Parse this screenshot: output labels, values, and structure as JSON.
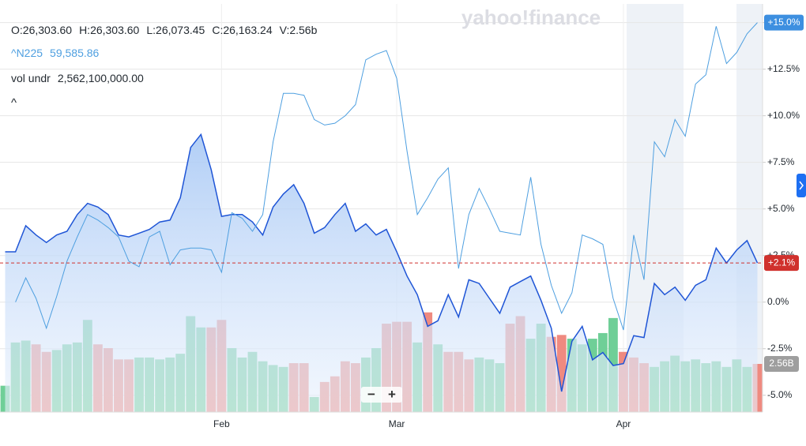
{
  "watermark": "yahoo!finance",
  "ohlcv": [
    "O:26,303.60",
    "H:26,303.60",
    "L:26,073.45",
    "C:26,163.24",
    "V:2.56b"
  ],
  "controls": {
    "collapse": "^",
    "zoom_out": "−",
    "zoom_in": "+"
  },
  "chart_data": {
    "type": "line",
    "categories": [
      null,
      null,
      null,
      null,
      null,
      null,
      null,
      null,
      null,
      null,
      null,
      null,
      null,
      null,
      null,
      null,
      null,
      null,
      null,
      null,
      null,
      "Feb",
      null,
      null,
      null,
      null,
      null,
      null,
      null,
      null,
      null,
      null,
      null,
      null,
      null,
      null,
      null,
      null,
      "Mar",
      null,
      null,
      null,
      null,
      null,
      null,
      null,
      null,
      null,
      null,
      null,
      null,
      null,
      null,
      null,
      null,
      null,
      null,
      null,
      null,
      null,
      "Apr",
      null,
      null,
      null,
      null,
      null,
      null,
      null,
      null,
      null,
      null,
      null,
      null,
      null
    ],
    "ylim": [
      -5.9,
      16.0
    ],
    "yticks": [
      {
        "value": -5,
        "label": "-5.0%"
      },
      {
        "value": -2.5,
        "label": "-2.5%"
      },
      {
        "value": 0,
        "label": "0.0%"
      },
      {
        "value": 2.5,
        "label": "+2.5%"
      },
      {
        "value": 5,
        "label": "+5.0%"
      },
      {
        "value": 7.5,
        "label": "+7.5%"
      },
      {
        "value": 10,
        "label": "+10.0%"
      },
      {
        "value": 12.5,
        "label": "+12.5%"
      },
      {
        "value": 15,
        "label": "+15.0%"
      }
    ],
    "grid": true,
    "series": [
      {
        "color": "#1f55d6",
        "fill": true,
        "values": [
          2.7,
          2.7,
          4.1,
          3.6,
          3.2,
          3.6,
          3.8,
          4.7,
          5.3,
          5.1,
          4.7,
          3.6,
          3.5,
          3.7,
          3.9,
          4.3,
          4.4,
          5.6,
          8.3,
          9.0,
          7.1,
          4.6,
          4.7,
          4.7,
          4.3,
          3.6,
          5.1,
          5.8,
          6.3,
          5.3,
          3.7,
          4.0,
          4.7,
          5.3,
          3.8,
          4.2,
          3.6,
          3.9,
          2.7,
          1.4,
          0.4,
          -1.3,
          -1.0,
          0.4,
          -0.8,
          1.2,
          1.0,
          0.2,
          -0.6,
          0.8,
          1.1,
          1.4,
          0.1,
          -1.4,
          -4.8,
          -2.1,
          -1.3,
          -3.1,
          -2.7,
          -3.4,
          -3.3,
          -1.8,
          -1.9,
          1.0,
          0.4,
          0.8,
          0.1,
          0.9,
          1.2,
          2.9,
          2.1,
          2.8,
          3.3,
          2.1
        ]
      },
      {
        "name": "^N225",
        "last_label": "59,585.86",
        "color": "#4e9fe0",
        "fill": false,
        "badge": {
          "value": 15.0,
          "label": "+15.0%",
          "color": "#3d8fe0"
        },
        "values": [
          null,
          0.0,
          1.3,
          0.2,
          -1.4,
          0.3,
          2.2,
          3.5,
          4.7,
          4.4,
          4.0,
          3.5,
          2.2,
          1.9,
          3.5,
          3.8,
          2.0,
          2.8,
          2.9,
          2.9,
          2.8,
          1.6,
          4.8,
          4.5,
          3.8,
          4.7,
          8.6,
          11.2,
          11.2,
          11.1,
          9.8,
          9.5,
          9.6,
          10.0,
          10.6,
          13.0,
          13.3,
          13.5,
          12.0,
          8.1,
          4.7,
          5.6,
          6.6,
          7.2,
          1.8,
          4.7,
          6.1,
          5.0,
          3.8,
          3.7,
          3.6,
          6.7,
          3.1,
          0.9,
          -0.6,
          0.5,
          3.6,
          3.4,
          3.1,
          0.2,
          -1.5,
          3.6,
          1.2,
          8.6,
          7.8,
          9.8,
          8.9,
          11.7,
          12.2,
          14.8,
          12.8,
          13.4,
          14.4,
          15.0
        ]
      }
    ],
    "reference_line": {
      "value": 2.1,
      "label": "+2.1%",
      "color": "#d0312d"
    },
    "volume": {
      "name": "vol undr",
      "total_label": "2,562,100,000.00",
      "vlim": [
        0,
        21.7
      ],
      "values": [
        1.4,
        3.7,
        3.8,
        3.6,
        3.2,
        3.3,
        3.6,
        3.7,
        4.9,
        3.6,
        3.4,
        2.8,
        2.8,
        2.9,
        2.9,
        2.8,
        2.9,
        3.1,
        5.1,
        4.5,
        4.5,
        4.9,
        3.4,
        2.9,
        3.2,
        2.7,
        2.5,
        2.4,
        2.6,
        2.6,
        0.8,
        1.6,
        1.9,
        2.7,
        2.6,
        2.9,
        3.4,
        4.7,
        4.8,
        4.8,
        3.7,
        5.3,
        3.6,
        3.2,
        3.2,
        2.8,
        2.9,
        2.8,
        2.6,
        4.7,
        5.1,
        3.9,
        4.7,
        4.0,
        4.1,
        3.9,
        3.6,
        3.9,
        4.2,
        5.0,
        3.2,
        2.9,
        2.6,
        2.4,
        2.7,
        3.0,
        2.7,
        2.8,
        2.6,
        2.7,
        2.4,
        2.8,
        2.4,
        2.56
      ],
      "value_labels": [
        null,
        null,
        null,
        null,
        null,
        null,
        null,
        null,
        null,
        null,
        null,
        null,
        null,
        null,
        null,
        null,
        null,
        null,
        null,
        null,
        null,
        null,
        null,
        null,
        null,
        null,
        null,
        null,
        null,
        null,
        null,
        null,
        null,
        null,
        null,
        null,
        null,
        null,
        null,
        null,
        null,
        null,
        null,
        null,
        null,
        null,
        null,
        null,
        null,
        null,
        null,
        null,
        null,
        null,
        null,
        null,
        null,
        null,
        null,
        null,
        null,
        null,
        null,
        null,
        null,
        null,
        null,
        null,
        null,
        null,
        null,
        null,
        null,
        "2.56B"
      ],
      "colors": [
        "#6fcf97",
        "#6fcf97",
        "#6fcf97",
        "#ef8a80",
        "#ef8a80",
        "#6fcf97",
        "#6fcf97",
        "#6fcf97",
        "#6fcf97",
        "#ef8a80",
        "#ef8a80",
        "#ef8a80",
        "#ef8a80",
        "#6fcf97",
        "#6fcf97",
        "#6fcf97",
        "#6fcf97",
        "#6fcf97",
        "#6fcf97",
        "#6fcf97",
        "#ef8a80",
        "#ef8a80",
        "#6fcf97",
        "#6fcf97",
        "#6fcf97",
        "#6fcf97",
        "#6fcf97",
        "#6fcf97",
        "#ef8a80",
        "#ef8a80",
        "#6fcf97",
        "#ef8a80",
        "#ef8a80",
        "#ef8a80",
        "#ef8a80",
        "#6fcf97",
        "#6fcf97",
        "#ef8a80",
        "#ef8a80",
        "#ef8a80",
        "#6fcf97",
        "#ef8a80",
        "#6fcf97",
        "#ef8a80",
        "#ef8a80",
        "#ef8a80",
        "#6fcf97",
        "#6fcf97",
        "#6fcf97",
        "#ef8a80",
        "#ef8a80",
        "#6fcf97",
        "#6fcf97",
        "#ef8a80",
        "#ef8a80",
        "#6fcf97",
        "#6fcf97",
        "#6fcf97",
        "#6fcf97",
        "#6fcf97",
        "#ef8a80",
        "#ef8a80",
        "#ef8a80",
        "#6fcf97",
        "#6fcf97",
        "#6fcf97",
        "#6fcf97",
        "#6fcf97",
        "#6fcf97",
        "#6fcf97",
        "#6fcf97",
        "#6fcf97",
        "#6fcf97",
        "#ef8a80"
      ],
      "badge_color": "#9e9e9e"
    }
  }
}
